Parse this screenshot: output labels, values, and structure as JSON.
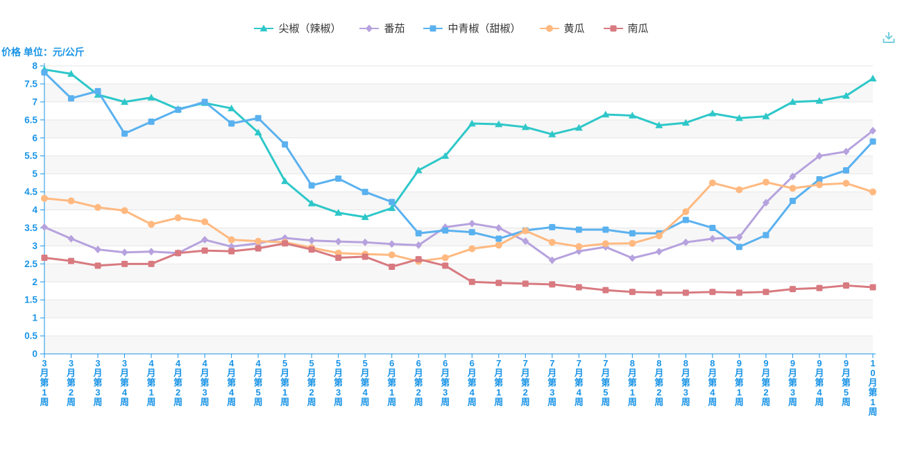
{
  "title": {
    "y_axis_title": "价格 单位：元/公斤"
  },
  "toolbox": {
    "download_icon": "download-icon",
    "icon_color": "#74cfdd"
  },
  "theme": {
    "axis_color": "#1a94e6",
    "grid_line_color": "#e6e6e6",
    "band_color": "#f7f7f7",
    "legend_text_color": "#333333",
    "background": "#ffffff"
  },
  "chart_data": {
    "type": "line",
    "title": "",
    "ylabel": "价格 单位：元/公斤",
    "xlabel": "",
    "ylim": [
      0,
      8
    ],
    "ytick_step": 0.5,
    "grid": true,
    "split_area": true,
    "legend_position": "top",
    "ytick_labels": [
      "0",
      "0.5",
      "1",
      "1.5",
      "2",
      "2.5",
      "3",
      "3.5",
      "4",
      "4.5",
      "5",
      "5.5",
      "6",
      "6.5",
      "7",
      "7.5",
      "8"
    ],
    "categories": [
      "3月第1周",
      "3月第2周",
      "3月第3周",
      "3月第4周",
      "4月第1周",
      "4月第2周",
      "4月第3周",
      "4月第4周",
      "4月第5周",
      "5月第1周",
      "5月第2周",
      "5月第3周",
      "5月第4周",
      "6月第1周",
      "6月第2周",
      "6月第3周",
      "6月第4周",
      "7月第1周",
      "7月第2周",
      "7月第3周",
      "7月第4周",
      "7月第5周",
      "8月第1周",
      "8月第2周",
      "8月第3周",
      "8月第4周",
      "9月第1周",
      "9月第2周",
      "9月第3周",
      "9月第4周",
      "9月第5周",
      "10月第1周"
    ],
    "series": [
      {
        "name": "尖椒（辣椒）",
        "marker": "triangle",
        "color": "#2ec7c9",
        "values": [
          7.9,
          7.78,
          7.2,
          7.0,
          7.12,
          6.8,
          6.97,
          6.82,
          6.15,
          4.8,
          4.18,
          3.92,
          3.8,
          4.05,
          5.1,
          5.5,
          6.4,
          6.38,
          6.3,
          6.1,
          6.28,
          6.65,
          6.62,
          6.35,
          6.42,
          6.68,
          6.55,
          6.6,
          7.0,
          7.03,
          7.17,
          7.65
        ]
      },
      {
        "name": "番茄",
        "marker": "diamond",
        "color": "#b6a2de",
        "values": [
          3.52,
          3.2,
          2.9,
          2.82,
          2.84,
          2.8,
          3.17,
          2.98,
          3.07,
          3.22,
          3.15,
          3.12,
          3.1,
          3.05,
          3.02,
          3.52,
          3.62,
          3.5,
          3.13,
          2.6,
          2.85,
          2.97,
          2.66,
          2.84,
          3.1,
          3.2,
          3.24,
          4.2,
          4.93,
          5.5,
          5.62,
          6.2
        ]
      },
      {
        "name": "中青椒（甜椒）",
        "marker": "square",
        "color": "#5ab1ef",
        "values": [
          7.82,
          7.1,
          7.3,
          6.12,
          6.45,
          6.78,
          7.0,
          6.4,
          6.55,
          5.82,
          4.68,
          4.87,
          4.5,
          4.22,
          3.35,
          3.43,
          3.38,
          3.2,
          3.43,
          3.52,
          3.45,
          3.45,
          3.35,
          3.35,
          3.72,
          3.5,
          2.97,
          3.3,
          4.25,
          4.85,
          5.1,
          5.9
        ]
      },
      {
        "name": "黄瓜",
        "marker": "circle",
        "color": "#ffb980",
        "values": [
          4.32,
          4.25,
          4.07,
          3.98,
          3.6,
          3.78,
          3.67,
          3.17,
          3.13,
          3.1,
          2.95,
          2.8,
          2.77,
          2.75,
          2.57,
          2.67,
          2.92,
          3.02,
          3.42,
          3.1,
          2.98,
          3.06,
          3.07,
          3.28,
          3.95,
          4.75,
          4.56,
          4.77,
          4.6,
          4.7,
          4.74,
          4.5
        ]
      },
      {
        "name": "南瓜",
        "marker": "square",
        "color": "#d87a80",
        "values": [
          2.67,
          2.58,
          2.45,
          2.5,
          2.5,
          2.8,
          2.87,
          2.85,
          2.93,
          3.07,
          2.9,
          2.67,
          2.7,
          2.42,
          2.63,
          2.45,
          2.0,
          1.97,
          1.95,
          1.93,
          1.85,
          1.77,
          1.72,
          1.7,
          1.7,
          1.72,
          1.7,
          1.72,
          1.8,
          1.83,
          1.9,
          1.85
        ]
      }
    ]
  }
}
